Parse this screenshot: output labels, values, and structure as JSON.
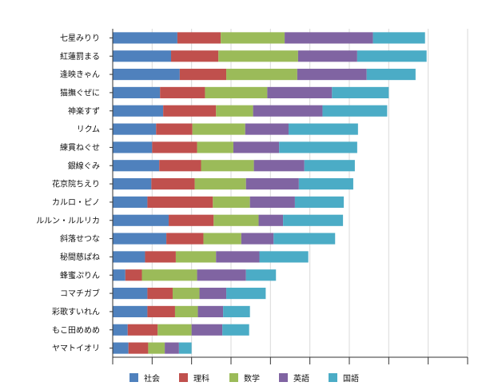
{
  "chart_data": {
    "type": "bar",
    "orientation": "horizontal",
    "stacked": true,
    "grid": true,
    "legend_position": "bottom",
    "title": "",
    "xlabel": "",
    "ylabel": "",
    "xlim": [
      0,
      450
    ],
    "categories": [
      "七星みりり",
      "紅蓮罰まる",
      "逢映きゃん",
      "猫撫ぐぜに",
      "神楽すず",
      "リクム",
      "練貫ねぐせ",
      "銀線ぐみ",
      "花京院ちえり",
      "カルロ・ピノ",
      "ルルン・ルルリカ",
      "斜落せつな",
      "秘間慈ぱね",
      "蜂蜜ぷりん",
      "コマチガブ",
      "彩歌すいれん",
      "もこ田めめめ",
      "ヤマトイオリ"
    ],
    "series": [
      {
        "name": "社会",
        "color": "#4f81bd",
        "values": [
          82,
          74,
          85,
          60,
          64,
          55,
          50,
          59,
          49,
          44,
          71,
          68,
          41,
          16,
          44,
          44,
          19,
          20
        ]
      },
      {
        "name": "理科",
        "color": "#c0504d",
        "values": [
          55,
          60,
          59,
          57,
          67,
          46,
          57,
          53,
          55,
          83,
          57,
          47,
          39,
          21,
          32,
          35,
          38,
          25
        ]
      },
      {
        "name": "数学",
        "color": "#9bbb59",
        "values": [
          81,
          101,
          90,
          79,
          47,
          67,
          46,
          67,
          65,
          47,
          57,
          48,
          51,
          70,
          34,
          29,
          43,
          21
        ]
      },
      {
        "name": "英語",
        "color": "#8064a2",
        "values": [
          112,
          75,
          88,
          82,
          88,
          55,
          58,
          64,
          67,
          57,
          31,
          41,
          55,
          62,
          34,
          32,
          39,
          18
        ]
      },
      {
        "name": "国語",
        "color": "#4bacc6",
        "values": [
          66,
          88,
          62,
          72,
          82,
          88,
          99,
          64,
          69,
          62,
          76,
          78,
          62,
          38,
          50,
          34,
          34,
          16
        ]
      }
    ]
  }
}
